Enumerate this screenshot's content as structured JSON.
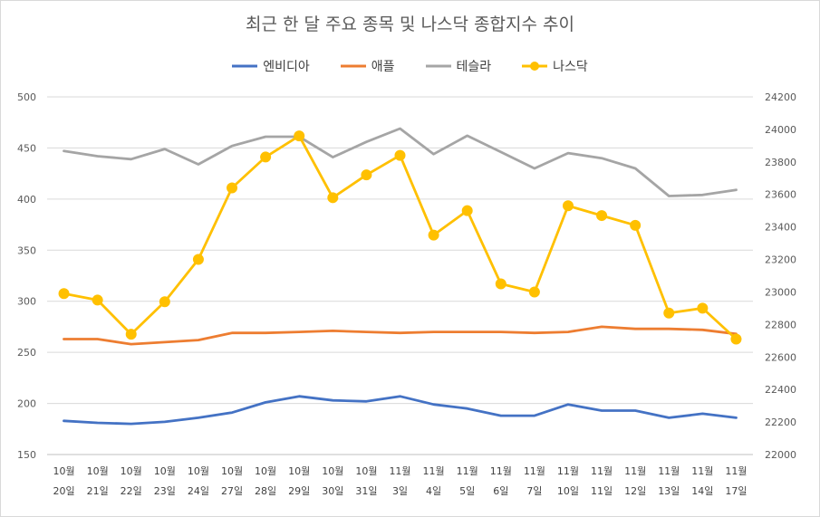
{
  "chart_data": {
    "type": "line",
    "title": "최근 한 달 주요 종목 및 나스닥 종합지수 추이",
    "categories": [
      [
        "10월",
        "20일"
      ],
      [
        "10월",
        "21일"
      ],
      [
        "10월",
        "22일"
      ],
      [
        "10월",
        "23일"
      ],
      [
        "10월",
        "24일"
      ],
      [
        "10월",
        "27일"
      ],
      [
        "10월",
        "28일"
      ],
      [
        "10월",
        "29일"
      ],
      [
        "10월",
        "30일"
      ],
      [
        "10월",
        "31일"
      ],
      [
        "11월",
        "3일"
      ],
      [
        "11월",
        "4일"
      ],
      [
        "11월",
        "5일"
      ],
      [
        "11월",
        "6일"
      ],
      [
        "11월",
        "7일"
      ],
      [
        "11월",
        "10일"
      ],
      [
        "11월",
        "11일"
      ],
      [
        "11월",
        "12일"
      ],
      [
        "11월",
        "13일"
      ],
      [
        "11월",
        "14일"
      ],
      [
        "11월",
        "17일"
      ]
    ],
    "y_left": {
      "min": 150,
      "max": 500,
      "step": 50,
      "ticks": [
        "150",
        "200",
        "250",
        "300",
        "350",
        "400",
        "450",
        "500"
      ]
    },
    "y_right": {
      "min": 22000,
      "max": 24200,
      "step": 200,
      "ticks": [
        "22000",
        "22200",
        "22400",
        "22600",
        "22800",
        "23000",
        "23200",
        "23400",
        "23600",
        "23800",
        "24000",
        "24200"
      ]
    },
    "grid": true,
    "legend_position": "top",
    "series": [
      {
        "name": "엔비디아",
        "axis": "left",
        "color": "#4472c4",
        "marker": false,
        "values": [
          183,
          181,
          180,
          182,
          186,
          191,
          201,
          207,
          203,
          202,
          207,
          199,
          195,
          188,
          188,
          199,
          193,
          193,
          186,
          190,
          186
        ]
      },
      {
        "name": "애플",
        "axis": "left",
        "color": "#ed7d31",
        "marker": false,
        "values": [
          263,
          263,
          258,
          260,
          262,
          269,
          269,
          270,
          271,
          270,
          269,
          270,
          270,
          270,
          269,
          270,
          275,
          273,
          273,
          272,
          268
        ]
      },
      {
        "name": "테슬라",
        "axis": "left",
        "color": "#a5a5a5",
        "marker": false,
        "values": [
          447,
          442,
          439,
          449,
          434,
          452,
          461,
          461,
          441,
          456,
          469,
          444,
          462,
          446,
          430,
          445,
          440,
          430,
          403,
          404,
          409
        ]
      },
      {
        "name": "나스닥",
        "axis": "right",
        "color": "#ffc000",
        "marker": true,
        "values": [
          22990,
          22950,
          22740,
          22940,
          23200,
          23640,
          23830,
          23960,
          23580,
          23720,
          23840,
          23350,
          23500,
          23050,
          23000,
          23530,
          23470,
          23410,
          22870,
          22900,
          22710
        ]
      }
    ]
  }
}
